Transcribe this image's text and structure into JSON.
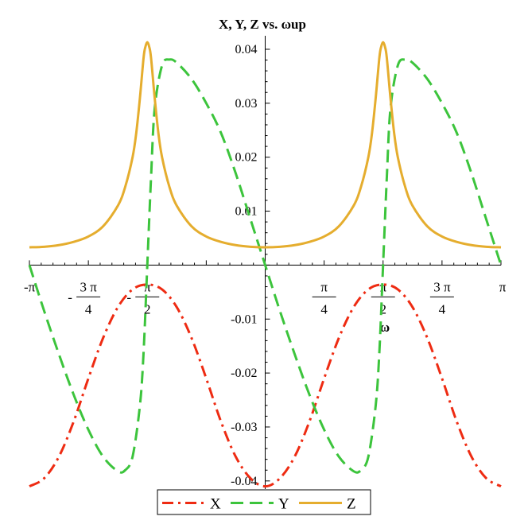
{
  "chart_data": {
    "type": "line",
    "title": "X, Y, Z vs. ωup",
    "xlabel": "ω",
    "ylabel": "",
    "xlim": [
      -3.14159,
      3.14159
    ],
    "ylim": [
      -0.0415,
      0.0425
    ],
    "y_ticks": [
      {
        "value": 0.04,
        "label": "0.04"
      },
      {
        "value": 0.03,
        "label": "0.03"
      },
      {
        "value": 0.02,
        "label": "0.02"
      },
      {
        "value": 0.01,
        "label": "0.01"
      },
      {
        "value": -0.01,
        "label": "-0.01"
      },
      {
        "value": -0.02,
        "label": "-0.02"
      },
      {
        "value": -0.03,
        "label": "-0.03"
      },
      {
        "value": -0.04,
        "label": "-0.04"
      }
    ],
    "x_ticks": [
      {
        "value": -3.14159,
        "sign": "",
        "num": "-π",
        "den": ""
      },
      {
        "value": -2.35619,
        "sign": "-",
        "num": "3 π",
        "den": "4"
      },
      {
        "value": -1.5708,
        "sign": "-",
        "num": "π",
        "den": "2"
      },
      {
        "value": 0.7854,
        "sign": "",
        "num": "π",
        "den": "4"
      },
      {
        "value": 1.5708,
        "sign": "",
        "num": "π",
        "den": "2"
      },
      {
        "value": 2.35619,
        "sign": "",
        "num": "3 π",
        "den": "4"
      },
      {
        "value": 3.14159,
        "sign": "",
        "num": "π",
        "den": ""
      }
    ],
    "grid": false,
    "legend_position": "bottom-center",
    "series": [
      {
        "name": "X",
        "color": "#ee2b12",
        "dash": "dash-dot",
        "x": [
          -3.1416,
          -2.9452,
          -2.7489,
          -2.5525,
          -2.3562,
          -2.1598,
          -1.9635,
          -1.7671,
          -1.5708,
          -1.3744,
          -1.1781,
          -0.9817,
          -0.7854,
          -0.589,
          -0.3927,
          -0.1963,
          0.0,
          0.1963,
          0.3927,
          0.589,
          0.7854,
          0.9817,
          1.1781,
          1.3744,
          1.5708,
          1.7671,
          1.9635,
          2.1598,
          2.3562,
          2.5525,
          2.7489,
          2.9452,
          3.1416
        ],
        "y": [
          -0.041,
          -0.0395,
          -0.0355,
          -0.029,
          -0.021,
          -0.0135,
          -0.0078,
          -0.0045,
          -0.0036,
          -0.0045,
          -0.0078,
          -0.0135,
          -0.021,
          -0.029,
          -0.0355,
          -0.0395,
          -0.041,
          -0.0395,
          -0.0355,
          -0.029,
          -0.021,
          -0.0135,
          -0.0078,
          -0.0045,
          -0.0036,
          -0.0045,
          -0.0078,
          -0.0135,
          -0.021,
          -0.029,
          -0.0355,
          -0.0395,
          -0.041
        ]
      },
      {
        "name": "Y",
        "color": "#3cc43c",
        "dash": "dashed",
        "x": [
          -3.1416,
          -2.9452,
          -2.7489,
          -2.5525,
          -2.3562,
          -2.1598,
          -1.9635,
          -1.8653,
          -1.7671,
          -1.669,
          -1.6199,
          -1.5708,
          -1.5217,
          -1.4726,
          -1.3744,
          -1.2763,
          -1.1781,
          -0.9817,
          -0.7854,
          -0.589,
          -0.3927,
          -0.1963,
          0.0,
          0.1963,
          0.3927,
          0.589,
          0.7854,
          0.9817,
          1.1781,
          1.2763,
          1.3744,
          1.4726,
          1.5217,
          1.5708,
          1.6199,
          1.669,
          1.7671,
          1.8653,
          1.9635,
          2.1598,
          2.3562,
          2.5525,
          2.7489,
          2.9452,
          3.1416
        ],
        "y": [
          0.0,
          -0.0085,
          -0.0165,
          -0.024,
          -0.0305,
          -0.0355,
          -0.0382,
          -0.038,
          -0.0355,
          -0.026,
          -0.016,
          0.0,
          0.016,
          0.029,
          0.037,
          0.0381,
          0.0375,
          0.0345,
          0.03,
          0.0245,
          0.017,
          0.0085,
          0.0,
          -0.0085,
          -0.0165,
          -0.024,
          -0.0305,
          -0.0355,
          -0.0382,
          -0.038,
          -0.0355,
          -0.026,
          -0.016,
          0.0,
          0.016,
          0.029,
          0.037,
          0.0381,
          0.0375,
          0.0345,
          0.03,
          0.0245,
          0.017,
          0.0085,
          0.0
        ]
      },
      {
        "name": "Z",
        "color": "#e5ad2e",
        "dash": "solid",
        "x": [
          -3.1416,
          -2.9452,
          -2.7489,
          -2.5525,
          -2.3562,
          -2.1598,
          -1.9635,
          -1.8653,
          -1.7671,
          -1.7181,
          -1.669,
          -1.6199,
          -1.5953,
          -1.5708,
          -1.5463,
          -1.5217,
          -1.4726,
          -1.4235,
          -1.3744,
          -1.2763,
          -1.1781,
          -0.9817,
          -0.7854,
          -0.589,
          -0.3927,
          -0.1963,
          0.0,
          0.1963,
          0.3927,
          0.589,
          0.7854,
          0.9817,
          1.1781,
          1.2763,
          1.3744,
          1.4235,
          1.4726,
          1.5217,
          1.5463,
          1.5708,
          1.5953,
          1.6199,
          1.669,
          1.7181,
          1.7671,
          1.8653,
          1.9635,
          2.1598,
          2.3562,
          2.5525,
          2.7489,
          2.9452,
          3.1416
        ],
        "y": [
          0.0033,
          0.0034,
          0.0037,
          0.0043,
          0.0053,
          0.0072,
          0.011,
          0.0145,
          0.02,
          0.0245,
          0.031,
          0.0385,
          0.0405,
          0.0413,
          0.0405,
          0.0385,
          0.031,
          0.0245,
          0.02,
          0.0145,
          0.011,
          0.0072,
          0.0053,
          0.0043,
          0.0037,
          0.0034,
          0.0033,
          0.0034,
          0.0037,
          0.0043,
          0.0053,
          0.0072,
          0.011,
          0.0145,
          0.02,
          0.0245,
          0.031,
          0.0385,
          0.0405,
          0.0413,
          0.0405,
          0.0385,
          0.031,
          0.0245,
          0.02,
          0.0145,
          0.011,
          0.0072,
          0.0053,
          0.0043,
          0.0037,
          0.0034,
          0.0033
        ]
      }
    ]
  }
}
